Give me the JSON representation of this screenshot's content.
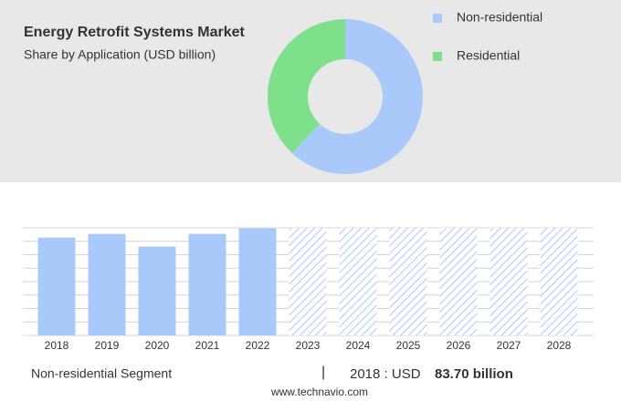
{
  "title": "Energy Retrofit Systems Market",
  "subtitle": "Share by Application (USD billion)",
  "chart_data": [
    {
      "type": "donut",
      "categories": [
        "Non-residential",
        "Residential"
      ],
      "values": [
        62,
        38
      ],
      "colors": [
        "#a9c9fb",
        "#7ee08a"
      ]
    },
    {
      "type": "bar",
      "categories": [
        "2018",
        "2019",
        "2020",
        "2021",
        "2022",
        "2023",
        "2024",
        "2025",
        "2026",
        "2027",
        "2028"
      ],
      "values": [
        83.7,
        86.8,
        76,
        86.8,
        91.5,
        null,
        null,
        null,
        null,
        null,
        null
      ],
      "color": "#a9c9fb",
      "ylim": [
        0,
        92
      ],
      "yticks": [
        0,
        11.5,
        23,
        34.5,
        46,
        57.5,
        69,
        80.5,
        92
      ],
      "grid": true
    }
  ],
  "footer": {
    "segment": "Non-residential Segment",
    "separator": "|",
    "year_label": "2018 : USD",
    "value_label": "83.70 billion",
    "source": "www.technavio.com"
  }
}
